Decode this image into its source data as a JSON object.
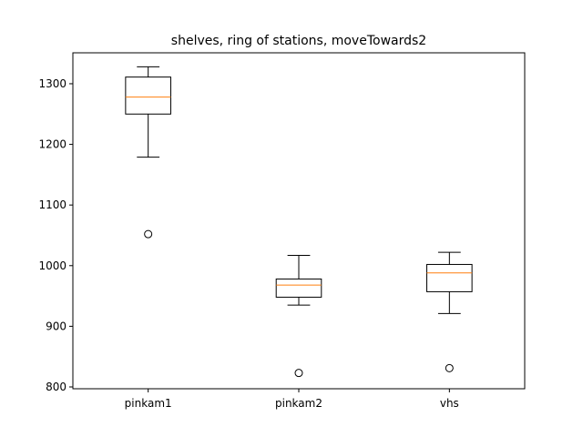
{
  "chart_data": {
    "type": "box",
    "title": "shelves, ring of stations, moveTowards2",
    "xlabel": "",
    "ylabel": "",
    "ylim": [
      797,
      1351
    ],
    "yticks": [
      800,
      900,
      1000,
      1100,
      1200,
      1300
    ],
    "grid": false,
    "categories": [
      "pinkam1",
      "pinkam2",
      "vhs"
    ],
    "series": [
      {
        "category": "pinkam1",
        "whisker_low": 1179,
        "q1": 1250,
        "median": 1278,
        "q3": 1311,
        "whisker_high": 1328,
        "outliers": [
          1052
        ]
      },
      {
        "category": "pinkam2",
        "whisker_low": 935,
        "q1": 948,
        "median": 968,
        "q3": 978,
        "whisker_high": 1017,
        "outliers": [
          823
        ]
      },
      {
        "category": "vhs",
        "whisker_low": 921,
        "q1": 957,
        "median": 988,
        "q3": 1002,
        "whisker_high": 1022,
        "outliers": [
          831
        ]
      }
    ],
    "colors": {
      "box": "#000000",
      "median": "#ff7f0e",
      "outlier": "#000000"
    }
  }
}
